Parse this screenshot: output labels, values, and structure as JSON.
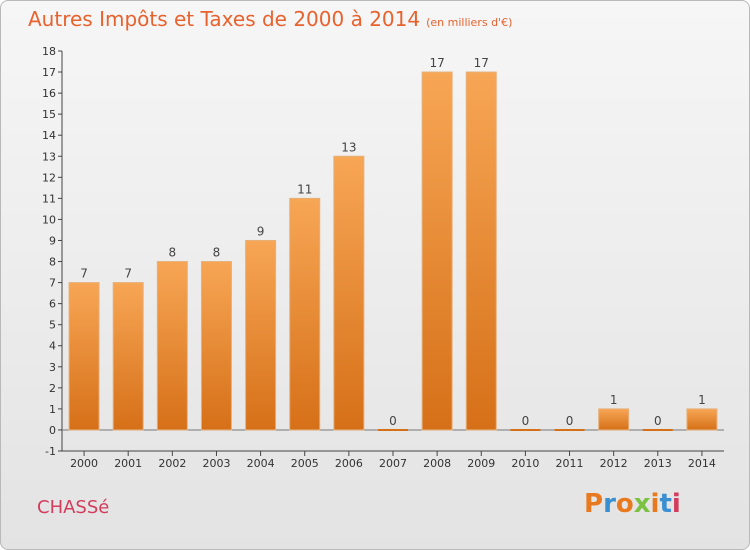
{
  "header": {
    "title": "Autres Impôts et Taxes de 2000 à 2014",
    "unit": "(en milliers d'€)"
  },
  "footer": {
    "place": "CHASSé",
    "logo_letters": [
      "P",
      "r",
      "o",
      "x",
      "i",
      "t",
      "i"
    ],
    "logo_colors": [
      "#e8791f",
      "#3a8fd1",
      "#e8791f",
      "#7cc242",
      "#e8791f",
      "#3a8fd1",
      "#d33c5d"
    ]
  },
  "colors": {
    "title": "#e8622e",
    "place": "#d33c5d",
    "bar_top": "#f7a655",
    "bar_bottom": "#d67018"
  },
  "chart_data": {
    "type": "bar",
    "title": "Autres Impôts et Taxes de 2000 à 2014",
    "categories": [
      "2000",
      "2001",
      "2002",
      "2003",
      "2004",
      "2005",
      "2006",
      "2007",
      "2008",
      "2009",
      "2010",
      "2011",
      "2012",
      "2013",
      "2014"
    ],
    "values": [
      7,
      7,
      8,
      8,
      9,
      11,
      13,
      0,
      17,
      17,
      0,
      0,
      1,
      0,
      1
    ],
    "data_labels": [
      "7",
      "7",
      "8",
      "8",
      "9",
      "11",
      "13",
      "0",
      "17",
      "17",
      "0",
      "0",
      "1",
      "0",
      "1"
    ],
    "y_ticks": [
      "-1",
      "0",
      "1",
      "2",
      "3",
      "4",
      "5",
      "6",
      "7",
      "8",
      "9",
      "10",
      "11",
      "12",
      "13",
      "14",
      "15",
      "16",
      "17",
      "18"
    ],
    "ylim": [
      -1,
      18
    ],
    "grid": false,
    "legend": "none"
  }
}
